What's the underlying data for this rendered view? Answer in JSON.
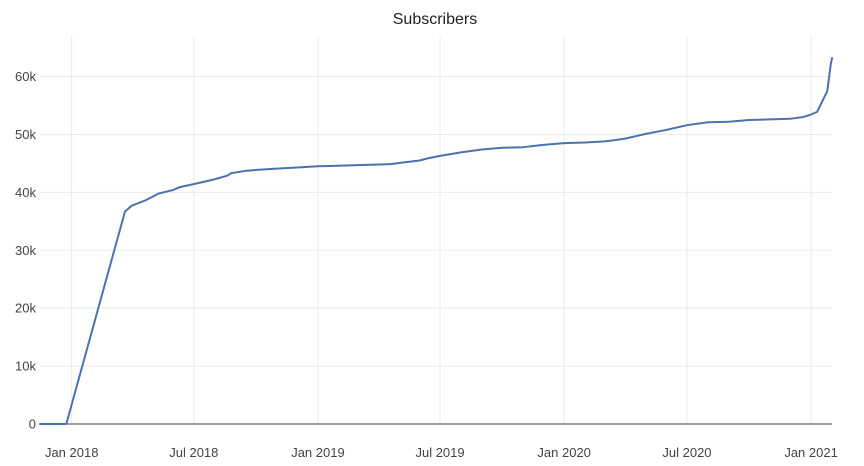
{
  "chart_data": {
    "type": "line",
    "title": "Subscribers",
    "xlabel": "",
    "ylabel": "",
    "xlim": [
      "2017-11-15",
      "2021-02-01"
    ],
    "ylim": [
      0,
      67000
    ],
    "grid": true,
    "legend": "none",
    "line_color": "#4c72b0",
    "y_ticks": [
      0,
      10000,
      20000,
      30000,
      40000,
      50000,
      60000
    ],
    "y_tick_labels": [
      "0",
      "10k",
      "20k",
      "30k",
      "40k",
      "50k",
      "60k"
    ],
    "x_ticks": [
      "2018-01-01",
      "2018-07-01",
      "2019-01-01",
      "2019-07-01",
      "2020-01-01",
      "2020-07-01",
      "2021-01-01"
    ],
    "x_tick_labels": [
      "Jan 2018",
      "Jul 2018",
      "Jan 2019",
      "Jul 2019",
      "Jan 2020",
      "Jul 2020",
      "Jan 2021"
    ],
    "series": [
      {
        "x": [
          "2017-11-15",
          "2017-12-24",
          "2018-03-21",
          "2018-03-31",
          "2018-04-20",
          "2018-05-10",
          "2018-05-31",
          "2018-06-10",
          "2018-06-30",
          "2018-07-30",
          "2018-08-20",
          "2018-08-25",
          "2018-09-15",
          "2018-10-05",
          "2018-11-01",
          "2018-12-01",
          "2019-01-01",
          "2019-02-01",
          "2019-03-01",
          "2019-04-01",
          "2019-04-20",
          "2019-05-10",
          "2019-06-01",
          "2019-06-10",
          "2019-07-01",
          "2019-08-01",
          "2019-09-01",
          "2019-10-01",
          "2019-11-01",
          "2019-12-01",
          "2020-01-01",
          "2020-02-01",
          "2020-03-01",
          "2020-03-15",
          "2020-04-01",
          "2020-05-01",
          "2020-06-01",
          "2020-07-01",
          "2020-08-01",
          "2020-09-01",
          "2020-10-01",
          "2020-11-01",
          "2020-12-01",
          "2020-12-20",
          "2020-12-31",
          "2021-01-10",
          "2021-01-25",
          "2021-01-30",
          "2021-02-01"
        ],
        "y": [
          0,
          0,
          36700,
          37700,
          38600,
          39800,
          40400,
          40900,
          41400,
          42200,
          42900,
          43300,
          43700,
          43900,
          44100,
          44300,
          44500,
          44600,
          44700,
          44800,
          44900,
          45200,
          45500,
          45800,
          46300,
          46900,
          47400,
          47700,
          47800,
          48200,
          48500,
          48600,
          48800,
          49000,
          49300,
          50100,
          50800,
          51600,
          52100,
          52200,
          52500,
          52600,
          52700,
          53000,
          53400,
          53900,
          57500,
          62000,
          63200
        ]
      }
    ]
  }
}
